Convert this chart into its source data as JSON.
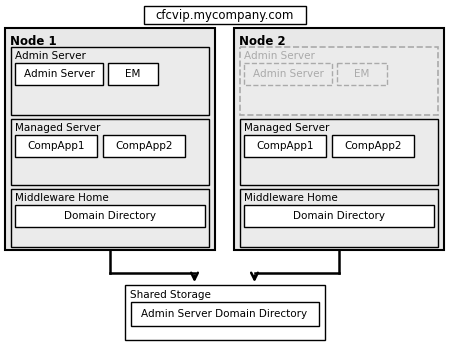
{
  "title": "cfcvip.mycompany.com",
  "node1_label": "Node 1",
  "node2_label": "Node 2",
  "admin_server_label": "Admin Server",
  "managed_server_label": "Managed Server",
  "middleware_home_label": "Middleware Home",
  "shared_storage_label": "Shared Storage",
  "node1_admin_items": [
    "Admin Server",
    "EM"
  ],
  "node2_admin_items": [
    "Admin Server",
    "EM"
  ],
  "managed_items": [
    "CompApp1",
    "CompApp2"
  ],
  "domain_directory": "Domain Directory",
  "admin_server_domain": "Admin Server Domain Directory",
  "node_bg": "#e8e8e8",
  "section_bg": "#ebebeb",
  "white": "#ffffff",
  "dashed_color": "#aaaaaa",
  "arrow_color": "#000000",
  "font_size": 7.5,
  "bold_font_size": 8.5,
  "title_font_size": 8.5
}
